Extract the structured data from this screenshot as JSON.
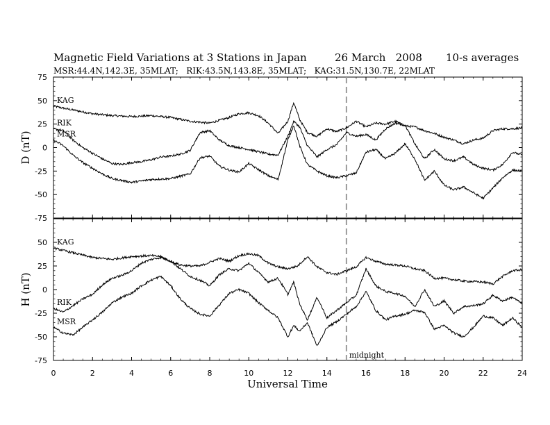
{
  "chart_data": {
    "type": "line",
    "title": "Magnetic Field Variations at 3 Stations in Japan",
    "date": "26 March   2008",
    "averaging": "10-s averages",
    "subtitle": "MSR:44.4N,142.3E, 35MLAT;   RIK:43.5N,143.8E, 35MLAT;   KAG:31.5N,130.7E, 22MLAT",
    "xlabel": "Universal Time",
    "xlim": [
      0,
      24
    ],
    "xticks": [
      "0",
      "2",
      "4",
      "6",
      "8",
      "10",
      "12",
      "14",
      "16",
      "18",
      "20",
      "22",
      "24"
    ],
    "midnight_marker": {
      "x": 15,
      "label": "midnight"
    },
    "panels": [
      {
        "ylabel": "D (nT)",
        "ylim": [
          -75,
          75
        ],
        "yticks": [
          "75",
          "50",
          "25",
          "0",
          "-25",
          "-50",
          "-75"
        ],
        "series": [
          {
            "name": "KAG",
            "x": [
              0,
              1,
              2,
              3,
              4,
              5,
              6,
              7,
              8,
              9,
              9.5,
              10,
              10.5,
              11,
              11.5,
              12,
              12.3,
              12.6,
              13,
              13.5,
              14,
              14.5,
              15,
              15.5,
              16,
              16.5,
              17,
              17.5,
              18,
              18.5,
              19,
              19.5,
              20,
              20.5,
              21,
              21.5,
              22,
              22.5,
              23,
              23.5,
              24
            ],
            "values": [
              44,
              40,
              36,
              34,
              33,
              34,
              32,
              28,
              26,
              32,
              36,
              37,
              34,
              26,
              15,
              28,
              48,
              30,
              16,
              12,
              20,
              17,
              21,
              28,
              22,
              26,
              25,
              28,
              23,
              22,
              18,
              15,
              11,
              8,
              4,
              8,
              10,
              18,
              20,
              20,
              21
            ]
          },
          {
            "name": "RIK",
            "x": [
              0,
              0.5,
              1,
              1.5,
              2,
              2.5,
              3,
              3.5,
              4,
              4.5,
              5,
              5.5,
              6,
              6.5,
              7,
              7.5,
              8,
              8.5,
              9,
              10,
              11,
              11.5,
              12,
              12.3,
              12.6,
              13,
              13.5,
              14,
              14.5,
              15,
              15.5,
              16,
              16.5,
              17,
              17.5,
              18,
              18.5,
              19,
              19.5,
              20,
              20.5,
              21,
              21.5,
              22,
              22.5,
              23,
              23.5,
              24
            ],
            "values": [
              20,
              18,
              8,
              0,
              -6,
              -12,
              -17,
              -18,
              -16,
              -15,
              -13,
              -10,
              -9,
              -7,
              -3,
              16,
              18,
              8,
              2,
              -2,
              -7,
              -8,
              12,
              28,
              22,
              2,
              -10,
              -2,
              3,
              16,
              12,
              14,
              8,
              20,
              26,
              24,
              4,
              -12,
              -2,
              -12,
              -14,
              -10,
              -18,
              -22,
              -24,
              -18,
              -5,
              -8
            ]
          },
          {
            "name": "MSR",
            "x": [
              0,
              0.5,
              1,
              1.5,
              2,
              2.5,
              3,
              3.5,
              4,
              5,
              6,
              7,
              7.5,
              8,
              8.5,
              9,
              9.5,
              10,
              11,
              11.5,
              12,
              12.3,
              12.6,
              13,
              13.5,
              14,
              14.5,
              15,
              15.5,
              16,
              16.5,
              17,
              17.5,
              18,
              18.5,
              19,
              19.5,
              20,
              20.5,
              21,
              21.5,
              22,
              22.5,
              23,
              23.5,
              24
            ],
            "values": [
              8,
              2,
              -8,
              -16,
              -22,
              -28,
              -33,
              -35,
              -37,
              -34,
              -33,
              -28,
              -11,
              -9,
              -20,
              -24,
              -26,
              -17,
              -30,
              -34,
              8,
              24,
              2,
              -18,
              -25,
              -30,
              -32,
              -30,
              -27,
              -5,
              -2,
              -12,
              -6,
              4,
              -12,
              -35,
              -25,
              -40,
              -45,
              -42,
              -48,
              -54,
              -43,
              -32,
              -24,
              -25
            ]
          }
        ]
      },
      {
        "ylabel": "H (nT)",
        "ylim": [
          -75,
          75
        ],
        "yticks": [
          "75",
          "50",
          "25",
          "0",
          "-25",
          "-50",
          "-75"
        ],
        "series": [
          {
            "name": "KAG",
            "x": [
              0,
              1,
              2,
              3,
              4,
              5,
              5.5,
              6,
              6.5,
              7,
              7.5,
              8,
              8.5,
              9,
              9.5,
              10,
              10.5,
              11,
              11.5,
              12,
              12.5,
              13,
              13.5,
              14,
              14.5,
              15,
              15.5,
              16,
              16.5,
              17,
              17.5,
              18,
              18.5,
              19,
              19.5,
              20,
              21,
              22,
              22.5,
              23,
              23.5,
              24
            ],
            "values": [
              44,
              39,
              34,
              32,
              35,
              36,
              35,
              30,
              26,
              25,
              25,
              29,
              33,
              30,
              36,
              38,
              36,
              28,
              24,
              22,
              25,
              35,
              24,
              18,
              16,
              20,
              24,
              34,
              30,
              27,
              26,
              25,
              22,
              20,
              12,
              12,
              9,
              8,
              6,
              14,
              20,
              21
            ]
          },
          {
            "name": "RIK",
            "x": [
              0,
              0.5,
              1,
              1.5,
              2,
              2.5,
              3,
              3.5,
              4,
              4.5,
              5,
              5.5,
              6,
              6.5,
              7,
              7.5,
              8,
              8.5,
              9,
              9.5,
              10,
              10.5,
              11,
              11.5,
              12,
              12.3,
              12.6,
              13,
              13.5,
              14,
              14.5,
              15,
              15.5,
              16,
              16.5,
              17,
              17.5,
              18,
              18.5,
              19,
              19.5,
              20,
              20.5,
              21,
              21.5,
              22,
              22.5,
              23,
              23.5,
              24
            ],
            "values": [
              -20,
              -24,
              -17,
              -10,
              -5,
              5,
              12,
              15,
              20,
              28,
              32,
              34,
              30,
              22,
              14,
              10,
              4,
              16,
              22,
              20,
              28,
              18,
              8,
              12,
              -5,
              8,
              -15,
              -32,
              -8,
              -30,
              -22,
              -14,
              -6,
              22,
              4,
              -2,
              -4,
              -7,
              -18,
              0,
              -18,
              -12,
              -25,
              -18,
              -17,
              -15,
              -6,
              -12,
              -8,
              -15
            ]
          },
          {
            "name": "MSR",
            "x": [
              0,
              0.5,
              1,
              1.5,
              2,
              2.5,
              3,
              3.5,
              4,
              4.5,
              5,
              5.5,
              6,
              6.5,
              7,
              7.5,
              8,
              8.5,
              9,
              9.5,
              10,
              10.5,
              11,
              11.5,
              12,
              12.3,
              12.6,
              13,
              13.5,
              14,
              14.5,
              15,
              15.5,
              16,
              16.5,
              17,
              17.5,
              18,
              18.5,
              19,
              19.5,
              20,
              20.5,
              21,
              21.5,
              22,
              22.5,
              23,
              23.5,
              24
            ],
            "values": [
              -40,
              -46,
              -48,
              -40,
              -32,
              -24,
              -14,
              -8,
              -4,
              4,
              10,
              14,
              4,
              -10,
              -20,
              -26,
              -28,
              -16,
              -4,
              0,
              -4,
              -14,
              -22,
              -30,
              -50,
              -38,
              -44,
              -35,
              -60,
              -40,
              -34,
              -26,
              -18,
              -2,
              -22,
              -32,
              -28,
              -26,
              -22,
              -24,
              -42,
              -38,
              -46,
              -50,
              -40,
              -28,
              -30,
              -38,
              -30,
              -40
            ]
          }
        ]
      }
    ]
  }
}
